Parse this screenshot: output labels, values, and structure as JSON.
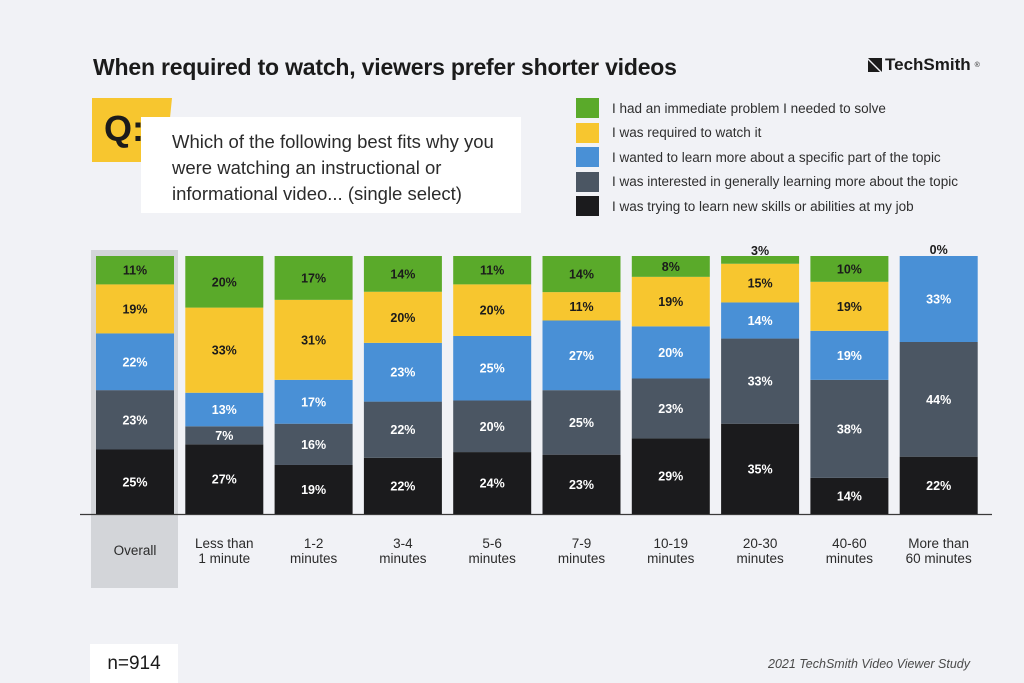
{
  "title": "When required to watch, viewers prefer shorter videos",
  "brand": "TechSmith",
  "brand_mark": "®",
  "question": {
    "badge": "Q:",
    "text": "Which of the following best fits why you were watching an instructional or informational video... (single select)"
  },
  "footer": {
    "sample": "n=914",
    "source": "2021 TechSmith Video Viewer Study"
  },
  "chart_data": {
    "type": "bar",
    "stacked": true,
    "highlighted_category": "Overall",
    "categories": [
      "Overall",
      "Less than\n1 minute",
      "1-2\nminutes",
      "3-4\nminutes",
      "5-6\nminutes",
      "7-9\nminutes",
      "10-19\nminutes",
      "20-30\nminutes",
      "40-60\nminutes",
      "More than\n60 minutes"
    ],
    "series": [
      {
        "name": "I was trying to learn new skills or abilities at my job",
        "color": "#1b1b1d",
        "values": [
          25,
          27,
          19,
          22,
          24,
          23,
          29,
          35,
          14,
          22
        ]
      },
      {
        "name": "I was interested in generally learning more about the topic",
        "color": "#4b5663",
        "values": [
          23,
          7,
          16,
          22,
          20,
          25,
          23,
          33,
          38,
          44
        ]
      },
      {
        "name": "I wanted to learn more about a specific part of the topic",
        "color": "#4990d6",
        "values": [
          22,
          13,
          17,
          23,
          25,
          27,
          20,
          14,
          19,
          33
        ]
      },
      {
        "name": "I was required to watch it",
        "color": "#f7c62f",
        "values": [
          19,
          33,
          31,
          20,
          20,
          11,
          19,
          15,
          19,
          0
        ]
      },
      {
        "name": "I had an immediate problem I needed to solve",
        "color": "#5aaa2a",
        "values": [
          11,
          20,
          17,
          14,
          11,
          14,
          8,
          3,
          10,
          0
        ]
      }
    ],
    "legend_order": [
      "I had an immediate problem I needed to solve",
      "I was required to watch it",
      "I wanted to learn more about a specific part of the topic",
      "I was interested in generally learning more about the topic",
      "I was trying to learn new skills or abilities at my job"
    ],
    "value_suffix": "%",
    "ylim": [
      0,
      100
    ],
    "grid": false,
    "legend_position": "top-right"
  }
}
